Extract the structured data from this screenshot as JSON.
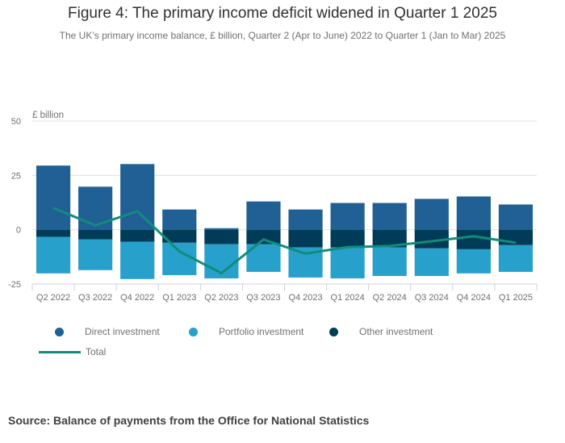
{
  "title": "Figure 4: The primary income deficit widened in Quarter 1 2025",
  "subtitle": "The UK’s primary income balance, £ billion, Quarter 2 (Apr to June) 2022 to Quarter 1 (Jan to Mar) 2025",
  "source": "Source: Balance of payments from the Office for National Statistics",
  "colors": {
    "direct": "#206095",
    "portfolio": "#27a0cc",
    "other": "#003c57",
    "total": "#118c7b"
  },
  "legend": {
    "direct": "Direct investment",
    "portfolio": "Portfolio investment",
    "other": "Other investment",
    "total": "Total"
  },
  "chart_data": {
    "type": "bar",
    "stacked": true,
    "title": "Figure 4: The primary income deficit widened in Quarter 1 2025",
    "ylabel": "£ billion",
    "xlabel": "",
    "ylim": [
      -25,
      50
    ],
    "yticks": [
      -25,
      0,
      25,
      50
    ],
    "grid": true,
    "legend_position": "bottom",
    "categories": [
      "Q2 2022",
      "Q3 2022",
      "Q4 2022",
      "Q1 2023",
      "Q2 2023",
      "Q3 2023",
      "Q4 2023",
      "Q1 2024",
      "Q2 2024",
      "Q3 2024",
      "Q4 2024",
      "Q1 2025"
    ],
    "series": [
      {
        "name": "Direct investment",
        "type": "bar",
        "values": [
          29.5,
          19.8,
          30.2,
          9.3,
          0.7,
          13.0,
          9.3,
          12.3,
          12.3,
          14.2,
          15.3,
          11.6
        ]
      },
      {
        "name": "Other investment",
        "type": "bar",
        "values": [
          -3.3,
          -4.5,
          -5.6,
          -6.0,
          -6.7,
          -6.7,
          -8.2,
          -8.2,
          -8.2,
          -8.6,
          -9.0,
          -7.1
        ]
      },
      {
        "name": "Portfolio investment",
        "type": "bar",
        "values": [
          -16.8,
          -14.1,
          -17.1,
          -14.9,
          -15.7,
          -12.7,
          -13.8,
          -14.2,
          -13.1,
          -12.7,
          -11.1,
          -12.3
        ]
      },
      {
        "name": "Total",
        "type": "line",
        "values": [
          10.0,
          2.0,
          8.5,
          -10.0,
          -20.0,
          -4.5,
          -11.0,
          -8.0,
          -7.5,
          -5.3,
          -3.0,
          -6.0
        ]
      }
    ]
  }
}
